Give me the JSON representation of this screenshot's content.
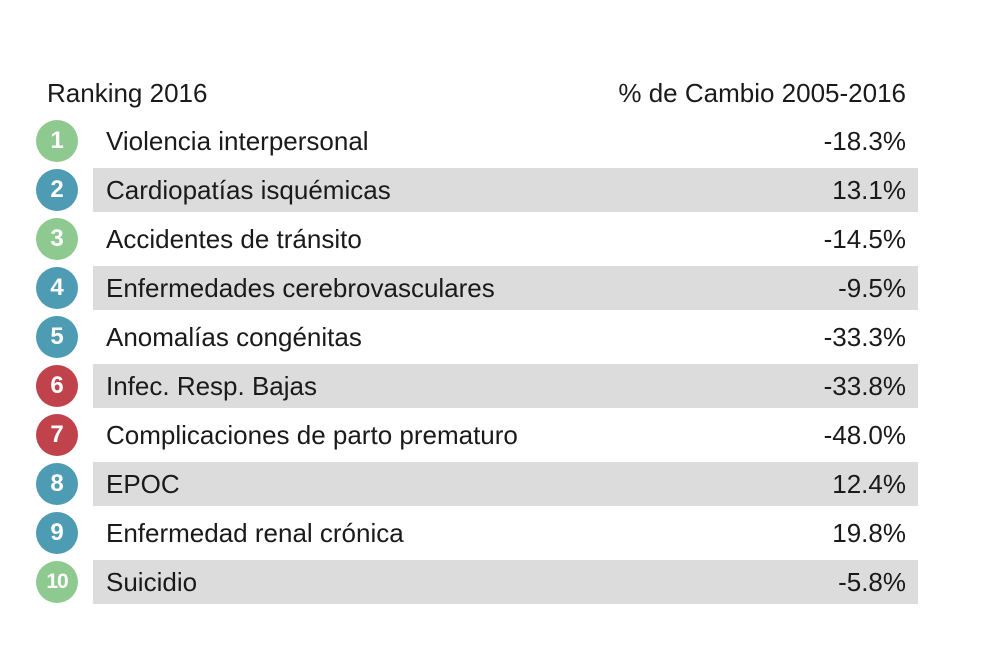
{
  "chart_data": {
    "type": "table",
    "columns": [
      "Ranking 2016",
      "% de Cambio 2005-2016"
    ],
    "rows": [
      {
        "rank": "1",
        "cause": "Violencia interpersonal",
        "change": "-18.3%",
        "value": -18.3,
        "color": "#8ec98f"
      },
      {
        "rank": "2",
        "cause": "Cardiopatías isquémicas",
        "change": "13.1%",
        "value": 13.1,
        "color": "#4e9bb4"
      },
      {
        "rank": "3",
        "cause": "Accidentes de tránsito",
        "change": "-14.5%",
        "value": -14.5,
        "color": "#8ec98f"
      },
      {
        "rank": "4",
        "cause": "Enfermedades cerebrovasculares",
        "change": "-9.5%",
        "value": -9.5,
        "color": "#4e9bb4"
      },
      {
        "rank": "5",
        "cause": "Anomalías congénitas",
        "change": "-33.3%",
        "value": -33.3,
        "color": "#4e9bb4"
      },
      {
        "rank": "6",
        "cause": "Infec. Resp. Bajas",
        "change": "-33.8%",
        "value": -33.8,
        "color": "#c0434b"
      },
      {
        "rank": "7",
        "cause": "Complicaciones de parto prematuro",
        "change": "-48.0%",
        "value": -48.0,
        "color": "#c0434b"
      },
      {
        "rank": "8",
        "cause": "EPOC",
        "change": "12.4%",
        "value": 12.4,
        "color": "#4e9bb4"
      },
      {
        "rank": "9",
        "cause": "Enfermedad renal crónica",
        "change": "19.8%",
        "value": 19.8,
        "color": "#4e9bb4"
      },
      {
        "rank": "10",
        "cause": "Suicidio",
        "change": "-5.8%",
        "value": -5.8,
        "color": "#8ec98f"
      }
    ],
    "shaded_band_color": "#dcdcdc"
  }
}
